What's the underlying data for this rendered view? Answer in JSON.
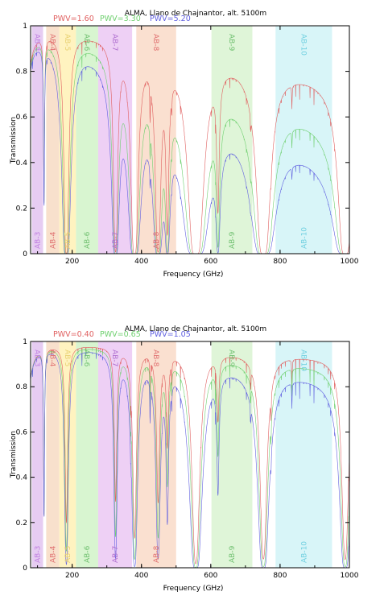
{
  "chart_data": [
    {
      "type": "line",
      "title": "ALMA, Llano de Chajnantor, alt. 5100m",
      "xlabel": "Frequency (GHz)",
      "ylabel": "Transmission",
      "xlim": [
        80,
        1000
      ],
      "ylim": [
        0,
        1
      ],
      "xticks": [
        200,
        400,
        600,
        800,
        1000
      ],
      "yticks": [
        0,
        0.2,
        0.4,
        0.6,
        0.8,
        1
      ],
      "grid": false,
      "legend_position": "top",
      "bands": [
        {
          "name": "AB-3",
          "from": 84,
          "to": 116,
          "color": "#e6ccf2",
          "label_color": "#c080e0"
        },
        {
          "name": "AB-4",
          "from": 125,
          "to": 163,
          "color": "#f8e0cc",
          "label_color": "#e07070"
        },
        {
          "name": "AB-5",
          "from": 163,
          "to": 211,
          "color": "#fff3c0",
          "label_color": "#e8d070"
        },
        {
          "name": "AB-6",
          "from": 211,
          "to": 275,
          "color": "#d8f5d0",
          "label_color": "#70c070"
        },
        {
          "name": "AB-7",
          "from": 275,
          "to": 373,
          "color": "#eed0f5",
          "label_color": "#b070d0"
        },
        {
          "name": "AB-8",
          "from": 385,
          "to": 500,
          "color": "#fae0d0",
          "label_color": "#e07070"
        },
        {
          "name": "AB-9",
          "from": 602,
          "to": 720,
          "color": "#dff5d8",
          "label_color": "#70c070"
        },
        {
          "name": "AB-10",
          "from": 787,
          "to": 950,
          "color": "#d8f5f8",
          "label_color": "#70d0e0"
        }
      ],
      "series": [
        {
          "name": "PWV=1.60",
          "pwv": 1.6,
          "color": "#e06060"
        },
        {
          "name": "PWV=3.30",
          "pwv": 3.3,
          "color": "#70d070"
        },
        {
          "name": "PWV=5.20",
          "pwv": 5.2,
          "color": "#6060e0"
        }
      ],
      "x": [
        80,
        100,
        115,
        118,
        125,
        150,
        175,
        183,
        190,
        220,
        250,
        300,
        320,
        325,
        340,
        370,
        380,
        400,
        420,
        448,
        460,
        480,
        500,
        520,
        560,
        600,
        640,
        680,
        700,
        730,
        760,
        800,
        850,
        880,
        920,
        950,
        990,
        1000
      ]
    },
    {
      "type": "line",
      "title": "ALMA, Llano de Chajnantor, alt. 5100m",
      "xlabel": "Frequency (GHz)",
      "ylabel": "Transmission",
      "xlim": [
        80,
        1000
      ],
      "ylim": [
        0,
        1
      ],
      "xticks": [
        200,
        400,
        600,
        800,
        1000
      ],
      "yticks": [
        0,
        0.2,
        0.4,
        0.6,
        0.8,
        1
      ],
      "grid": false,
      "legend_position": "top",
      "bands": [
        {
          "name": "AB-3",
          "from": 84,
          "to": 116,
          "color": "#e6ccf2",
          "label_color": "#c080e0"
        },
        {
          "name": "AB-4",
          "from": 125,
          "to": 163,
          "color": "#f8e0cc",
          "label_color": "#e07070"
        },
        {
          "name": "AB-5",
          "from": 163,
          "to": 211,
          "color": "#fff3c0",
          "label_color": "#e8d070"
        },
        {
          "name": "AB-6",
          "from": 211,
          "to": 275,
          "color": "#d8f5d0",
          "label_color": "#70c070"
        },
        {
          "name": "AB-7",
          "from": 275,
          "to": 373,
          "color": "#eed0f5",
          "label_color": "#b070d0"
        },
        {
          "name": "AB-8",
          "from": 385,
          "to": 500,
          "color": "#fae0d0",
          "label_color": "#e07070"
        },
        {
          "name": "AB-9",
          "from": 602,
          "to": 720,
          "color": "#dff5d8",
          "label_color": "#70c070"
        },
        {
          "name": "AB-10",
          "from": 787,
          "to": 950,
          "color": "#d8f5f8",
          "label_color": "#70d0e0"
        }
      ],
      "series": [
        {
          "name": "PWV=0.40",
          "pwv": 0.4,
          "color": "#e06060"
        },
        {
          "name": "PWV=0.65",
          "pwv": 0.65,
          "color": "#70d070"
        },
        {
          "name": "PWV=1.05",
          "pwv": 1.05,
          "color": "#6060e0"
        }
      ],
      "x": [
        80,
        100,
        115,
        118,
        125,
        150,
        175,
        183,
        190,
        220,
        250,
        300,
        320,
        325,
        340,
        370,
        380,
        400,
        420,
        448,
        460,
        480,
        500,
        520,
        560,
        600,
        640,
        680,
        700,
        730,
        760,
        800,
        850,
        880,
        920,
        950,
        990,
        1000
      ]
    }
  ]
}
